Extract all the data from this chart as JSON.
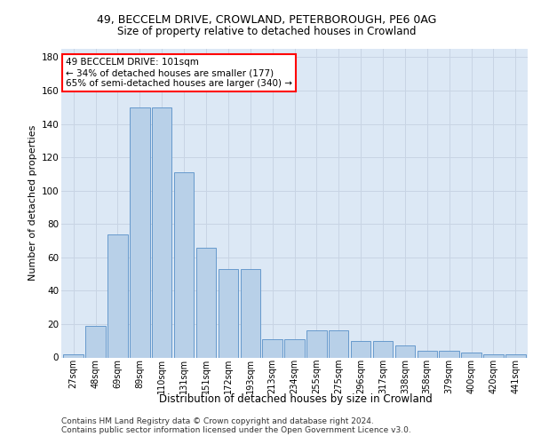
{
  "title_line1": "49, BECCELM DRIVE, CROWLAND, PETERBOROUGH, PE6 0AG",
  "title_line2": "Size of property relative to detached houses in Crowland",
  "xlabel": "Distribution of detached houses by size in Crowland",
  "ylabel": "Number of detached properties",
  "categories": [
    "27sqm",
    "48sqm",
    "69sqm",
    "89sqm",
    "110sqm",
    "131sqm",
    "151sqm",
    "172sqm",
    "193sqm",
    "213sqm",
    "234sqm",
    "255sqm",
    "275sqm",
    "296sqm",
    "317sqm",
    "338sqm",
    "358sqm",
    "379sqm",
    "400sqm",
    "420sqm",
    "441sqm"
  ],
  "bar_values": [
    2,
    19,
    74,
    150,
    150,
    111,
    66,
    53,
    53,
    11,
    11,
    16,
    16,
    10,
    10,
    7,
    4,
    4,
    3,
    2,
    2
  ],
  "bar_color": "#b8d0e8",
  "bar_edge_color": "#6699cc",
  "background_color": "#dce8f5",
  "annotation_text": "49 BECCELM DRIVE: 101sqm\n← 34% of detached houses are smaller (177)\n65% of semi-detached houses are larger (340) →",
  "annotation_box_color": "white",
  "annotation_box_edge_color": "red",
  "ylim": [
    0,
    185
  ],
  "yticks": [
    0,
    20,
    40,
    60,
    80,
    100,
    120,
    140,
    160,
    180
  ],
  "footnote": "Contains HM Land Registry data © Crown copyright and database right 2024.\nContains public sector information licensed under the Open Government Licence v3.0.",
  "grid_color": "#c8d4e4"
}
